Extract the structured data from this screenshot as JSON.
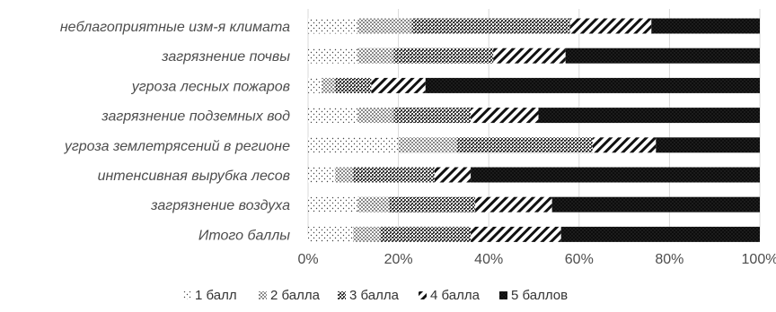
{
  "chart_data": {
    "type": "bar",
    "orientation": "horizontal",
    "stacked": "percent",
    "categories": [
      "неблагоприятные изм-я климата",
      "загрязнение почвы",
      "угроза лесных пожаров",
      "загрязнение подземных вод",
      "угроза землетрясений в регионе",
      "интенсивная вырубка лесов",
      "загрязнение  воздуха",
      "Итого баллы"
    ],
    "series": [
      {
        "name": "1 балл",
        "values": [
          11,
          11,
          3,
          11,
          20,
          6,
          11,
          10
        ]
      },
      {
        "name": "2 балла",
        "values": [
          12,
          8,
          3,
          8,
          13,
          4,
          7,
          6
        ]
      },
      {
        "name": "3 балла",
        "values": [
          35,
          22,
          8,
          17,
          30,
          18,
          19,
          20
        ]
      },
      {
        "name": "4 балла",
        "values": [
          18,
          16,
          12,
          15,
          14,
          8,
          17,
          20
        ]
      },
      {
        "name": "5 баллов",
        "values": [
          24,
          43,
          74,
          49,
          23,
          64,
          46,
          44
        ]
      }
    ],
    "xlim": [
      0,
      100
    ],
    "xticks": [
      "0%",
      "20%",
      "40%",
      "60%",
      "80%",
      "100%"
    ],
    "grid": true,
    "legend": "bottom",
    "title": "",
    "xlabel": "",
    "ylabel": ""
  }
}
